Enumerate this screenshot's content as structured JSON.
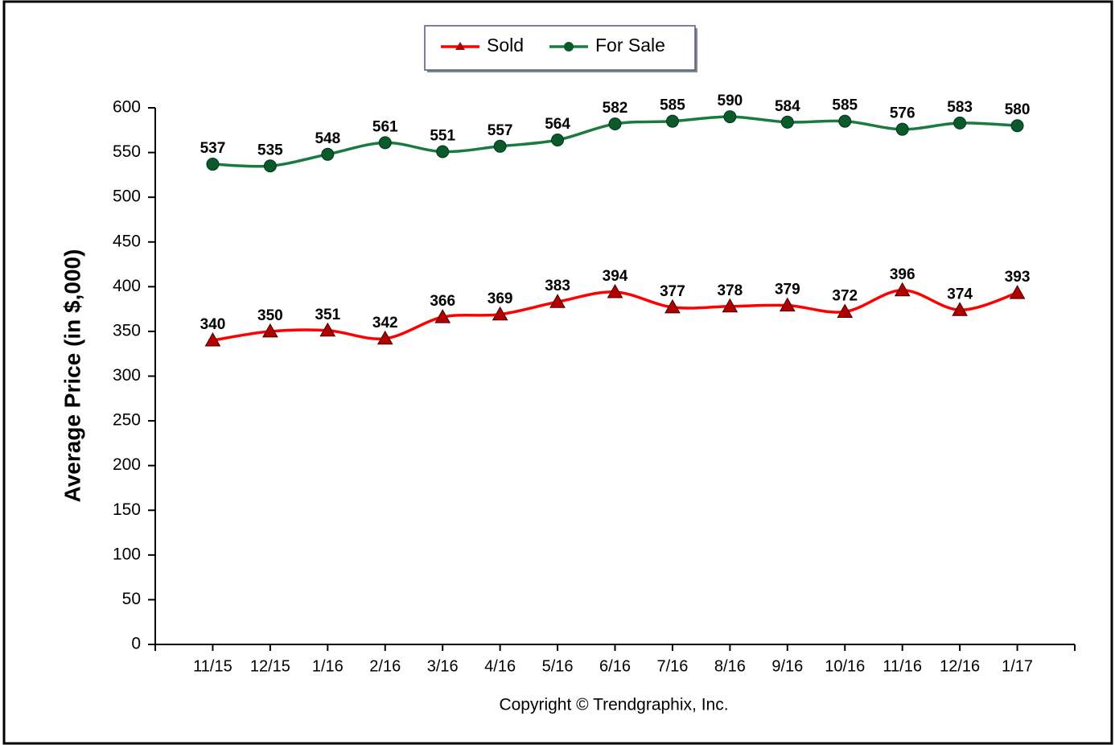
{
  "chart_data": {
    "type": "line",
    "y_label": "Average Price (in $,000)",
    "annotation": "Copyright © Trendgraphix, Inc.",
    "categories": [
      "11/15",
      "12/15",
      "1/16",
      "2/16",
      "3/16",
      "4/16",
      "5/16",
      "6/16",
      "7/16",
      "8/16",
      "9/16",
      "10/16",
      "11/16",
      "12/16",
      "1/17"
    ],
    "series": [
      {
        "name": "Sold",
        "color": "#ff0000",
        "marker_color": "#b00000",
        "marker": "triangle",
        "values": [
          340,
          350,
          351,
          342,
          366,
          369,
          383,
          394,
          377,
          378,
          379,
          372,
          396,
          374,
          393
        ]
      },
      {
        "name": "For Sale",
        "color": "#1a7a40",
        "marker_color": "#0b5a2a",
        "marker": "circle",
        "values": [
          537,
          535,
          548,
          561,
          551,
          557,
          564,
          582,
          585,
          590,
          584,
          585,
          576,
          583,
          580
        ]
      }
    ],
    "ylim": [
      0,
      600
    ],
    "yticks": [
      0,
      50,
      100,
      150,
      200,
      250,
      300,
      350,
      400,
      450,
      500,
      550,
      600
    ],
    "grid": false
  }
}
